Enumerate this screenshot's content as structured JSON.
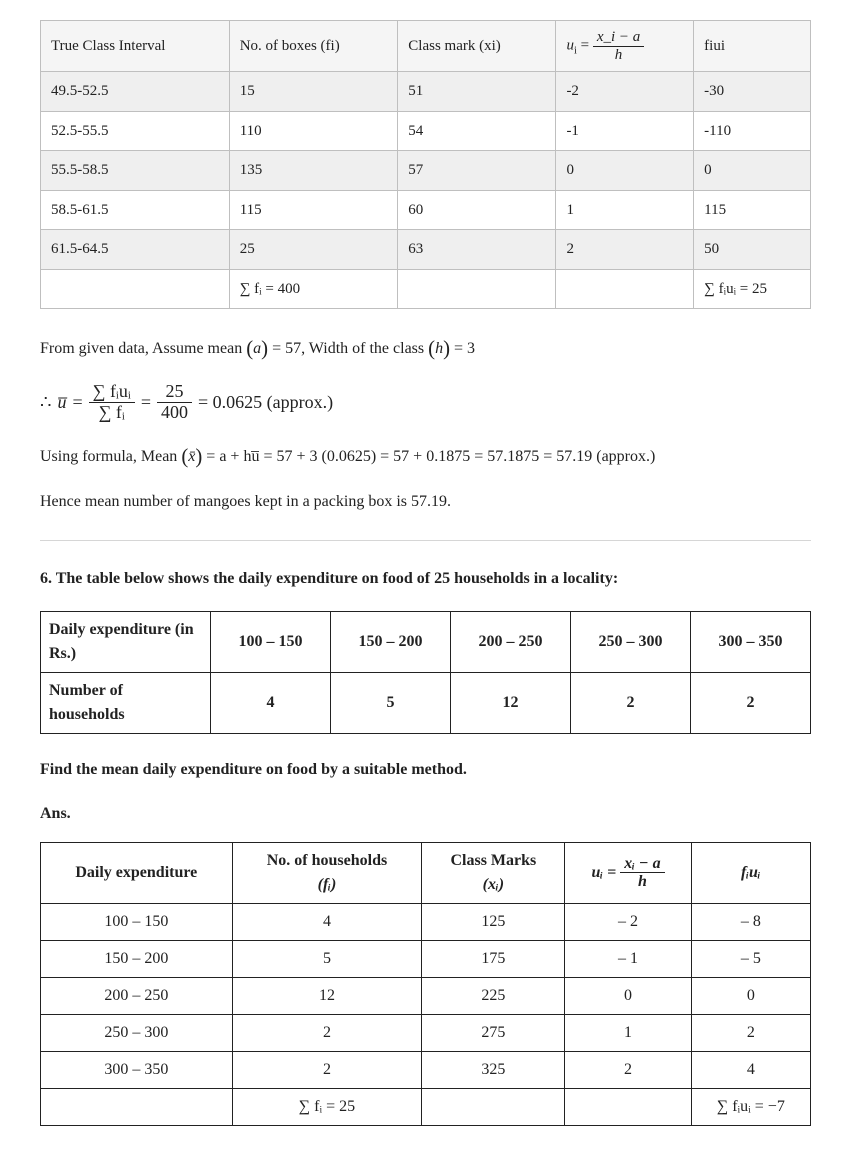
{
  "table1": {
    "headers": {
      "c1": "True Class Interval",
      "c2": "No. of boxes (fi)",
      "c3": "Class mark  (xi)",
      "c4_var": "u",
      "c4_sub": "i",
      "c4_eq": " = ",
      "c4_num": "x_i − a",
      "c4_den": "h",
      "c5": "fiui"
    },
    "rows": [
      {
        "c1": "49.5-52.5",
        "c2": "15",
        "c3": "51",
        "c4": "-2",
        "c5": "-30"
      },
      {
        "c1": "52.5-55.5",
        "c2": "110",
        "c3": "54",
        "c4": "-1",
        "c5": "-110"
      },
      {
        "c1": "55.5-58.5",
        "c2": "135",
        "c3": "57",
        "c4": "0",
        "c5": "0"
      },
      {
        "c1": "58.5-61.5",
        "c2": "115",
        "c3": "60",
        "c4": "1",
        "c5": "115"
      },
      {
        "c1": "61.5-64.5",
        "c2": "25",
        "c3": "63",
        "c4": "2",
        "c5": "50"
      }
    ],
    "totals": {
      "sum_fi": "∑ fᵢ = 400",
      "sum_fiui": "∑ fᵢuᵢ = 25"
    }
  },
  "para1_a": "From given data, Assume mean ",
  "para1_a_sym": "a",
  "para1_b": " = 57, Width of the class ",
  "para1_h_sym": "h",
  "para1_c": " = 3",
  "formula1": {
    "lead": "∴  ",
    "ubar": "u̅",
    "eq": " = ",
    "num1": "∑ fᵢuᵢ",
    "den1": "∑ fᵢ",
    "eq2": " = ",
    "num2": "25",
    "den2": "400",
    "tail": " = 0.0625  (approx.)"
  },
  "para2_a": "Using formula, Mean ",
  "para2_x_sym": "x̄",
  "para2_b": " = a + hu̅  = 57 + 3 (0.0625) = 57 + 0.1875 = 57.1875 = 57.19 (approx.)",
  "para3": "Hence mean number of mangoes kept in a packing box is 57.19.",
  "question6": "6. The table below shows the daily expenditure on food of 25 households in a locality:",
  "table2": {
    "row1_label": "Daily expenditure (in Rs.)",
    "row1_vals": [
      "100 – 150",
      "150 – 200",
      "200 – 250",
      "250 – 300",
      "300 – 350"
    ],
    "row2_label": "Number of households",
    "row2_vals": [
      "4",
      "5",
      "12",
      "2",
      "2"
    ]
  },
  "question6b": "Find the mean daily expenditure on food by a suitable method.",
  "ans_label": "Ans.",
  "table3": {
    "headers": {
      "c1": "Daily expenditure",
      "c2_a": "No. of households",
      "c2_b": "(fᵢ)",
      "c3_a": "Class Marks",
      "c3_b": "(xᵢ)",
      "c4_u": "uᵢ = ",
      "c4_num": "xᵢ − a",
      "c4_den": "h",
      "c5": "fᵢuᵢ"
    },
    "rows": [
      {
        "c1": "100 – 150",
        "c2": "4",
        "c3": "125",
        "c4": "– 2",
        "c5": "– 8"
      },
      {
        "c1": "150 – 200",
        "c2": "5",
        "c3": "175",
        "c4": "– 1",
        "c5": "– 5"
      },
      {
        "c1": "200 – 250",
        "c2": "12",
        "c3": "225",
        "c4": "0",
        "c5": "0"
      },
      {
        "c1": "250 – 300",
        "c2": "2",
        "c3": "275",
        "c4": "1",
        "c5": "2"
      },
      {
        "c1": "300 – 350",
        "c2": "2",
        "c3": "325",
        "c4": "2",
        "c5": "4"
      }
    ],
    "totals": {
      "sum_fi": "∑ fᵢ  = 25",
      "sum_fiui": "∑ fᵢuᵢ = −7"
    }
  }
}
